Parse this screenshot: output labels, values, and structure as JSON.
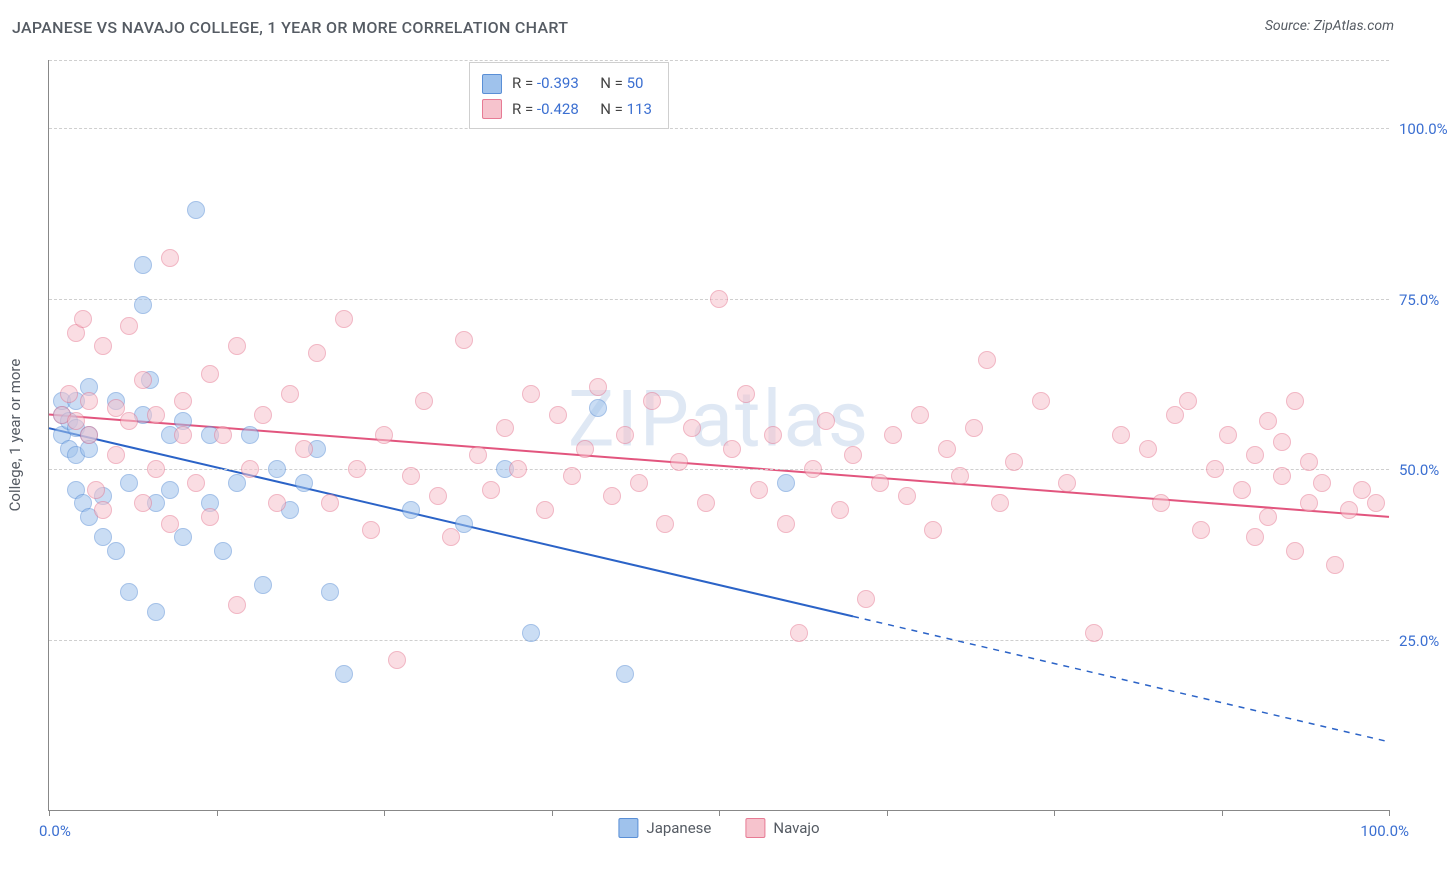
{
  "title": "JAPANESE VS NAVAJO COLLEGE, 1 YEAR OR MORE CORRELATION CHART",
  "source": "Source: ZipAtlas.com",
  "watermark": "ZIPatlas",
  "yaxis_label": "College, 1 year or more",
  "chart": {
    "type": "scatter",
    "xlim": [
      0,
      100
    ],
    "ylim": [
      0,
      110
    ],
    "xticks": [
      0,
      12.5,
      25,
      37.5,
      50,
      62.5,
      75,
      87.5,
      100
    ],
    "xaxis_min_label": "0.0%",
    "xaxis_max_label": "100.0%",
    "ytick_labels": [
      {
        "v": 25,
        "label": "25.0%"
      },
      {
        "v": 50,
        "label": "50.0%"
      },
      {
        "v": 75,
        "label": "75.0%"
      },
      {
        "v": 100,
        "label": "100.0%"
      }
    ],
    "grid_color": "#cfcfcf",
    "background_color": "#ffffff",
    "point_radius": 8,
    "point_opacity": 0.55,
    "series": [
      {
        "name": "Japanese",
        "fill": "#9fc2ec",
        "stroke": "#5a8fd6",
        "line_color": "#2b63c7",
        "line_width": 2,
        "trend": {
          "y_at_x0": 56,
          "y_at_x100": 10,
          "solid_until_x": 60
        },
        "stats": {
          "R": "-0.393",
          "N": "50"
        },
        "points": [
          [
            1,
            58
          ],
          [
            1,
            55
          ],
          [
            1,
            60
          ],
          [
            1.5,
            53
          ],
          [
            1.5,
            57
          ],
          [
            2,
            60
          ],
          [
            2,
            56
          ],
          [
            2,
            52
          ],
          [
            2,
            47
          ],
          [
            2.5,
            45
          ],
          [
            3,
            55
          ],
          [
            3,
            62
          ],
          [
            3,
            53
          ],
          [
            3,
            43
          ],
          [
            4,
            46
          ],
          [
            4,
            40
          ],
          [
            5,
            60
          ],
          [
            5,
            38
          ],
          [
            6,
            48
          ],
          [
            6,
            32
          ],
          [
            7,
            80
          ],
          [
            7,
            74
          ],
          [
            7,
            58
          ],
          [
            7.5,
            63
          ],
          [
            8,
            45
          ],
          [
            8,
            29
          ],
          [
            9,
            55
          ],
          [
            9,
            47
          ],
          [
            10,
            57
          ],
          [
            10,
            40
          ],
          [
            11,
            88
          ],
          [
            12,
            55
          ],
          [
            12,
            45
          ],
          [
            13,
            38
          ],
          [
            14,
            48
          ],
          [
            15,
            55
          ],
          [
            16,
            33
          ],
          [
            17,
            50
          ],
          [
            18,
            44
          ],
          [
            19,
            48
          ],
          [
            20,
            53
          ],
          [
            21,
            32
          ],
          [
            22,
            20
          ],
          [
            27,
            44
          ],
          [
            31,
            42
          ],
          [
            34,
            50
          ],
          [
            36,
            26
          ],
          [
            41,
            59
          ],
          [
            43,
            20
          ],
          [
            55,
            48
          ]
        ]
      },
      {
        "name": "Navajo",
        "fill": "#f6c3cd",
        "stroke": "#e77b94",
        "line_color": "#e2557e",
        "line_width": 2,
        "trend": {
          "y_at_x0": 58,
          "y_at_x100": 43,
          "solid_until_x": 100
        },
        "stats": {
          "R": "-0.428",
          "N": "113"
        },
        "points": [
          [
            1,
            58
          ],
          [
            1.5,
            61
          ],
          [
            2,
            70
          ],
          [
            2,
            57
          ],
          [
            2.5,
            72
          ],
          [
            3,
            60
          ],
          [
            3,
            55
          ],
          [
            3.5,
            47
          ],
          [
            4,
            68
          ],
          [
            4,
            44
          ],
          [
            5,
            59
          ],
          [
            5,
            52
          ],
          [
            6,
            71
          ],
          [
            6,
            57
          ],
          [
            7,
            45
          ],
          [
            7,
            63
          ],
          [
            8,
            58
          ],
          [
            8,
            50
          ],
          [
            9,
            81
          ],
          [
            9,
            42
          ],
          [
            10,
            55
          ],
          [
            10,
            60
          ],
          [
            11,
            48
          ],
          [
            12,
            64
          ],
          [
            12,
            43
          ],
          [
            13,
            55
          ],
          [
            14,
            30
          ],
          [
            14,
            68
          ],
          [
            15,
            50
          ],
          [
            16,
            58
          ],
          [
            17,
            45
          ],
          [
            18,
            61
          ],
          [
            19,
            53
          ],
          [
            20,
            67
          ],
          [
            21,
            45
          ],
          [
            22,
            72
          ],
          [
            23,
            50
          ],
          [
            24,
            41
          ],
          [
            25,
            55
          ],
          [
            26,
            22
          ],
          [
            27,
            49
          ],
          [
            28,
            60
          ],
          [
            29,
            46
          ],
          [
            30,
            40
          ],
          [
            31,
            69
          ],
          [
            32,
            52
          ],
          [
            33,
            47
          ],
          [
            34,
            56
          ],
          [
            35,
            50
          ],
          [
            36,
            61
          ],
          [
            37,
            44
          ],
          [
            38,
            58
          ],
          [
            39,
            49
          ],
          [
            40,
            53
          ],
          [
            41,
            62
          ],
          [
            42,
            46
          ],
          [
            43,
            55
          ],
          [
            44,
            48
          ],
          [
            45,
            60
          ],
          [
            46,
            42
          ],
          [
            47,
            51
          ],
          [
            48,
            56
          ],
          [
            49,
            45
          ],
          [
            50,
            75
          ],
          [
            51,
            53
          ],
          [
            52,
            61
          ],
          [
            53,
            47
          ],
          [
            54,
            55
          ],
          [
            55,
            42
          ],
          [
            56,
            26
          ],
          [
            57,
            50
          ],
          [
            58,
            57
          ],
          [
            59,
            44
          ],
          [
            60,
            52
          ],
          [
            61,
            31
          ],
          [
            62,
            48
          ],
          [
            63,
            55
          ],
          [
            64,
            46
          ],
          [
            65,
            58
          ],
          [
            66,
            41
          ],
          [
            67,
            53
          ],
          [
            68,
            49
          ],
          [
            69,
            56
          ],
          [
            70,
            66
          ],
          [
            71,
            45
          ],
          [
            72,
            51
          ],
          [
            74,
            60
          ],
          [
            76,
            48
          ],
          [
            78,
            26
          ],
          [
            80,
            55
          ],
          [
            82,
            53
          ],
          [
            83,
            45
          ],
          [
            84,
            58
          ],
          [
            85,
            60
          ],
          [
            86,
            41
          ],
          [
            87,
            50
          ],
          [
            88,
            55
          ],
          [
            89,
            47
          ],
          [
            90,
            40
          ],
          [
            90,
            52
          ],
          [
            91,
            57
          ],
          [
            91,
            43
          ],
          [
            92,
            49
          ],
          [
            92,
            54
          ],
          [
            93,
            38
          ],
          [
            93,
            60
          ],
          [
            94,
            45
          ],
          [
            94,
            51
          ],
          [
            95,
            48
          ],
          [
            96,
            36
          ],
          [
            97,
            44
          ],
          [
            98,
            47
          ],
          [
            99,
            45
          ]
        ]
      }
    ]
  },
  "bottom_legend": [
    {
      "label": "Japanese",
      "fill": "#9fc2ec",
      "stroke": "#5a8fd6"
    },
    {
      "label": "Navajo",
      "fill": "#f6c3cd",
      "stroke": "#e77b94"
    }
  ]
}
